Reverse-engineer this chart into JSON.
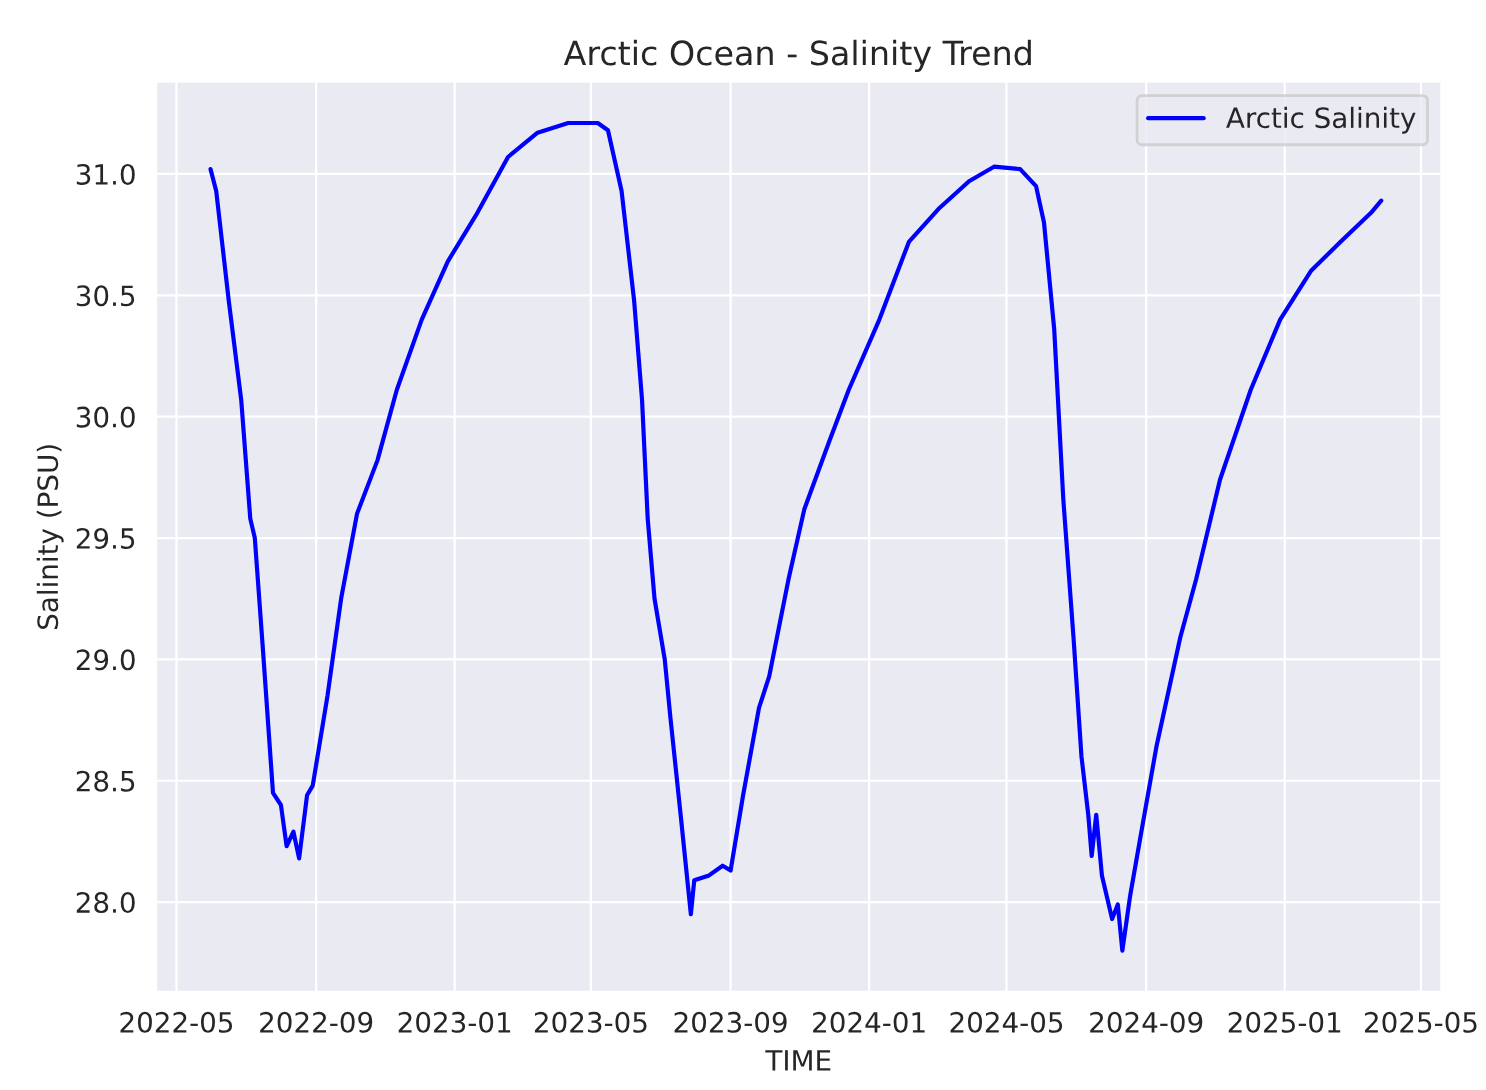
{
  "chart_data": {
    "type": "line",
    "title": "Arctic Ocean - Salinity Trend",
    "xlabel": "TIME",
    "ylabel": "Salinity (PSU)",
    "x": [
      "2022-05-31",
      "2022-06-05",
      "2022-06-16",
      "2022-06-27",
      "2022-07-05",
      "2022-07-09",
      "2022-07-16",
      "2022-07-25",
      "2022-08-01",
      "2022-08-06",
      "2022-08-12",
      "2022-08-17",
      "2022-08-24",
      "2022-08-29",
      "2022-09-11",
      "2022-09-23",
      "2022-10-07",
      "2022-10-25",
      "2022-11-11",
      "2022-12-03",
      "2022-12-26",
      "2023-01-21",
      "2023-02-17",
      "2023-03-15",
      "2023-04-11",
      "2023-05-07",
      "2023-05-16",
      "2023-05-28",
      "2023-06-08",
      "2023-06-15",
      "2023-06-20",
      "2023-06-26",
      "2023-07-05",
      "2023-07-10",
      "2023-07-19",
      "2023-07-28",
      "2023-07-31",
      "2023-08-13",
      "2023-08-25",
      "2023-09-01",
      "2023-09-12",
      "2023-09-26",
      "2023-10-05",
      "2023-10-22",
      "2023-11-05",
      "2023-11-27",
      "2023-12-14",
      "2024-01-10",
      "2024-02-05",
      "2024-03-03",
      "2024-03-29",
      "2024-04-20",
      "2024-05-13",
      "2024-05-27",
      "2024-06-03",
      "2024-06-12",
      "2024-06-20",
      "2024-06-29",
      "2024-07-06",
      "2024-07-12",
      "2024-07-15",
      "2024-07-19",
      "2024-07-24",
      "2024-08-02",
      "2024-08-07",
      "2024-08-11",
      "2024-08-18",
      "2024-08-27",
      "2024-09-10",
      "2024-10-01",
      "2024-10-15",
      "2024-11-05",
      "2024-12-02",
      "2024-12-28",
      "2025-01-24",
      "2025-02-19",
      "2025-03-18",
      "2025-03-27"
    ],
    "series": [
      {
        "name": "Arctic Salinity",
        "color": "#0000ff",
        "values": [
          31.02,
          30.93,
          30.48,
          30.07,
          29.58,
          29.5,
          29.05,
          28.45,
          28.4,
          28.23,
          28.29,
          28.18,
          28.44,
          28.48,
          28.85,
          29.25,
          29.6,
          29.82,
          30.11,
          30.4,
          30.64,
          30.84,
          31.07,
          31.17,
          31.21,
          31.21,
          31.18,
          30.93,
          30.48,
          30.07,
          29.58,
          29.25,
          29.0,
          28.76,
          28.36,
          27.95,
          28.09,
          28.11,
          28.15,
          28.13,
          28.44,
          28.8,
          28.93,
          29.33,
          29.62,
          29.9,
          30.11,
          30.4,
          30.72,
          30.86,
          30.97,
          31.03,
          31.02,
          30.95,
          30.8,
          30.36,
          29.66,
          29.09,
          28.6,
          28.36,
          28.19,
          28.36,
          28.11,
          27.93,
          27.99,
          27.8,
          28.03,
          28.27,
          28.64,
          29.09,
          29.33,
          29.74,
          30.11,
          30.4,
          30.6,
          30.72,
          30.84,
          30.89
        ]
      }
    ],
    "xlim": [
      "2022-04-13",
      "2025-05-19"
    ],
    "xticks": [
      {
        "value": "2022-05",
        "label": "2022-05"
      },
      {
        "value": "2022-09",
        "label": "2022-09"
      },
      {
        "value": "2023-01",
        "label": "2023-01"
      },
      {
        "value": "2023-05",
        "label": "2023-05"
      },
      {
        "value": "2023-09",
        "label": "2023-09"
      },
      {
        "value": "2024-01",
        "label": "2024-01"
      },
      {
        "value": "2024-05",
        "label": "2024-05"
      },
      {
        "value": "2024-09",
        "label": "2024-09"
      },
      {
        "value": "2025-01",
        "label": "2025-01"
      },
      {
        "value": "2025-05",
        "label": "2025-05"
      }
    ],
    "ylim": [
      27.63,
      31.38
    ],
    "yticks": [
      {
        "value": 28.0,
        "label": "28.0"
      },
      {
        "value": 28.5,
        "label": "28.5"
      },
      {
        "value": 29.0,
        "label": "29.0"
      },
      {
        "value": 29.5,
        "label": "29.5"
      },
      {
        "value": 30.0,
        "label": "30.0"
      },
      {
        "value": 30.5,
        "label": "30.5"
      },
      {
        "value": 31.0,
        "label": "31.0"
      }
    ],
    "grid": true,
    "legend": "top right",
    "marker": "none",
    "line_style": "solid"
  }
}
